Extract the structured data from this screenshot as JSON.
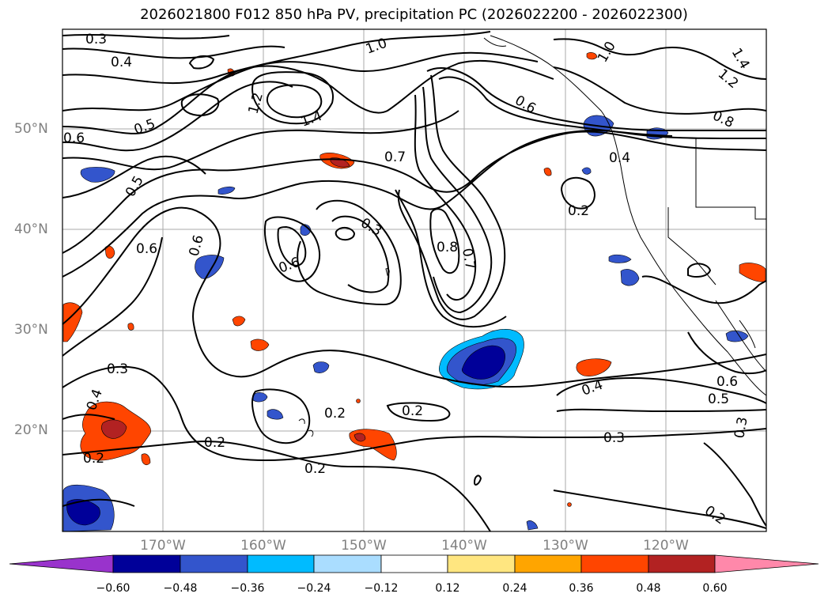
{
  "title": "2026021800 F012 850 hPa PV, precipitation PC (2026022200 - 2026022300)",
  "map": {
    "projection": "equirectangular",
    "lon_range": [
      -180,
      -110
    ],
    "lat_range": [
      10,
      60
    ],
    "gridlines": true,
    "lat_labels": [
      "20°N",
      "30°N",
      "40°N",
      "50°N"
    ],
    "lon_labels": [
      "170°W",
      "160°W",
      "150°W",
      "140°W",
      "130°W",
      "120°W"
    ],
    "contour_labels": [
      "0.3",
      "0.4",
      "0.5",
      "0.6",
      "0.7",
      "0.8",
      "1.0",
      "1.2",
      "1.4",
      "0.2",
      "0.3",
      "0.4",
      "0.5",
      "0.6",
      "0.7",
      "0.8",
      "1.0",
      "1.2",
      "1.4",
      "0.2"
    ]
  },
  "colorbar": {
    "ticks": [
      "−0.60",
      "−0.48",
      "−0.36",
      "−0.24",
      "−0.12",
      "0.12",
      "0.24",
      "0.36",
      "0.48",
      "0.60"
    ],
    "colors": [
      "#9933cc",
      "#000099",
      "#3355cc",
      "#00bbff",
      "#aaddff",
      "#ffffff",
      "#ffe680",
      "#ffa500",
      "#ff4500",
      "#b22222",
      "#ff88aa"
    ],
    "extend": "both"
  },
  "colors": {
    "contour": "#000000",
    "coast": "#000000",
    "grid": "#aaaaaa"
  }
}
